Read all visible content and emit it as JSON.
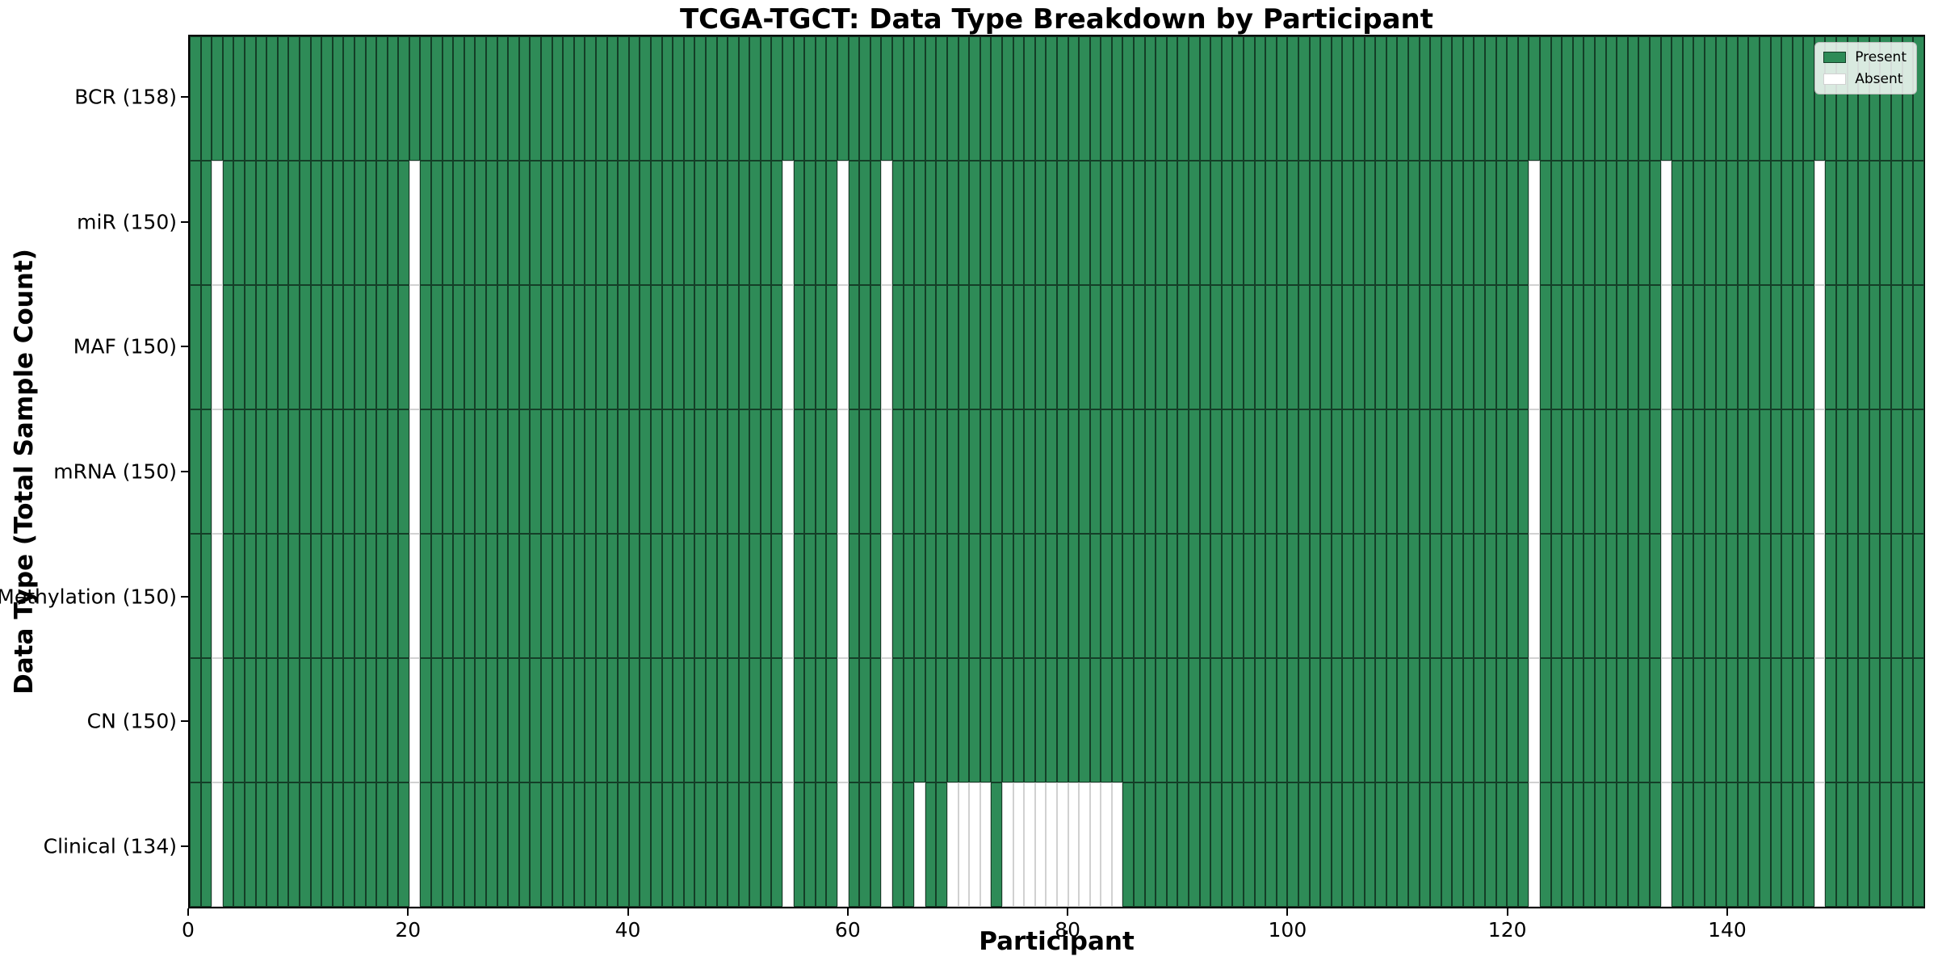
{
  "title": "TCGA-TGCT: Data Type Breakdown by Participant",
  "xlabel": "Participant",
  "ylabel": "Data Type (Total Sample Count)",
  "legend": {
    "present_label": "Present",
    "absent_label": "Absent"
  },
  "colors": {
    "present": "#2e8b57",
    "absent": "#ffffff",
    "present_edge": "rgba(0,0,0,0.55)",
    "absent_edge": "rgba(0,0,0,0.18)",
    "spine": "#000000"
  },
  "x_axis": {
    "ticks": [
      0,
      20,
      40,
      60,
      80,
      100,
      120,
      140
    ]
  },
  "chart_data": {
    "type": "heatmap",
    "n_participants": 158,
    "x_range": [
      0,
      158
    ],
    "value_legend": {
      "present": 1,
      "absent": 0
    },
    "rows": [
      {
        "label": "BCR (158)",
        "data_type": "BCR",
        "total": 158,
        "absent_participants": []
      },
      {
        "label": "miR (150)",
        "data_type": "miR",
        "total": 150,
        "absent_participants": [
          2,
          20,
          54,
          59,
          63,
          122,
          134,
          148
        ]
      },
      {
        "label": "MAF (150)",
        "data_type": "MAF",
        "total": 150,
        "absent_participants": [
          2,
          20,
          54,
          59,
          63,
          122,
          134,
          148
        ]
      },
      {
        "label": "mRNA (150)",
        "data_type": "mRNA",
        "total": 150,
        "absent_participants": [
          2,
          20,
          54,
          59,
          63,
          122,
          134,
          148
        ]
      },
      {
        "label": "Methylation (150)",
        "data_type": "Methylation",
        "total": 150,
        "absent_participants": [
          2,
          20,
          54,
          59,
          63,
          122,
          134,
          148
        ]
      },
      {
        "label": "CN (150)",
        "data_type": "CN",
        "total": 150,
        "absent_participants": [
          2,
          20,
          54,
          59,
          63,
          122,
          134,
          148
        ]
      },
      {
        "label": "Clinical (134)",
        "data_type": "Clinical",
        "total": 134,
        "absent_participants": [
          2,
          20,
          54,
          59,
          63,
          66,
          69,
          70,
          71,
          72,
          74,
          75,
          76,
          77,
          78,
          79,
          80,
          81,
          82,
          83,
          84,
          122,
          134,
          148
        ]
      }
    ]
  }
}
